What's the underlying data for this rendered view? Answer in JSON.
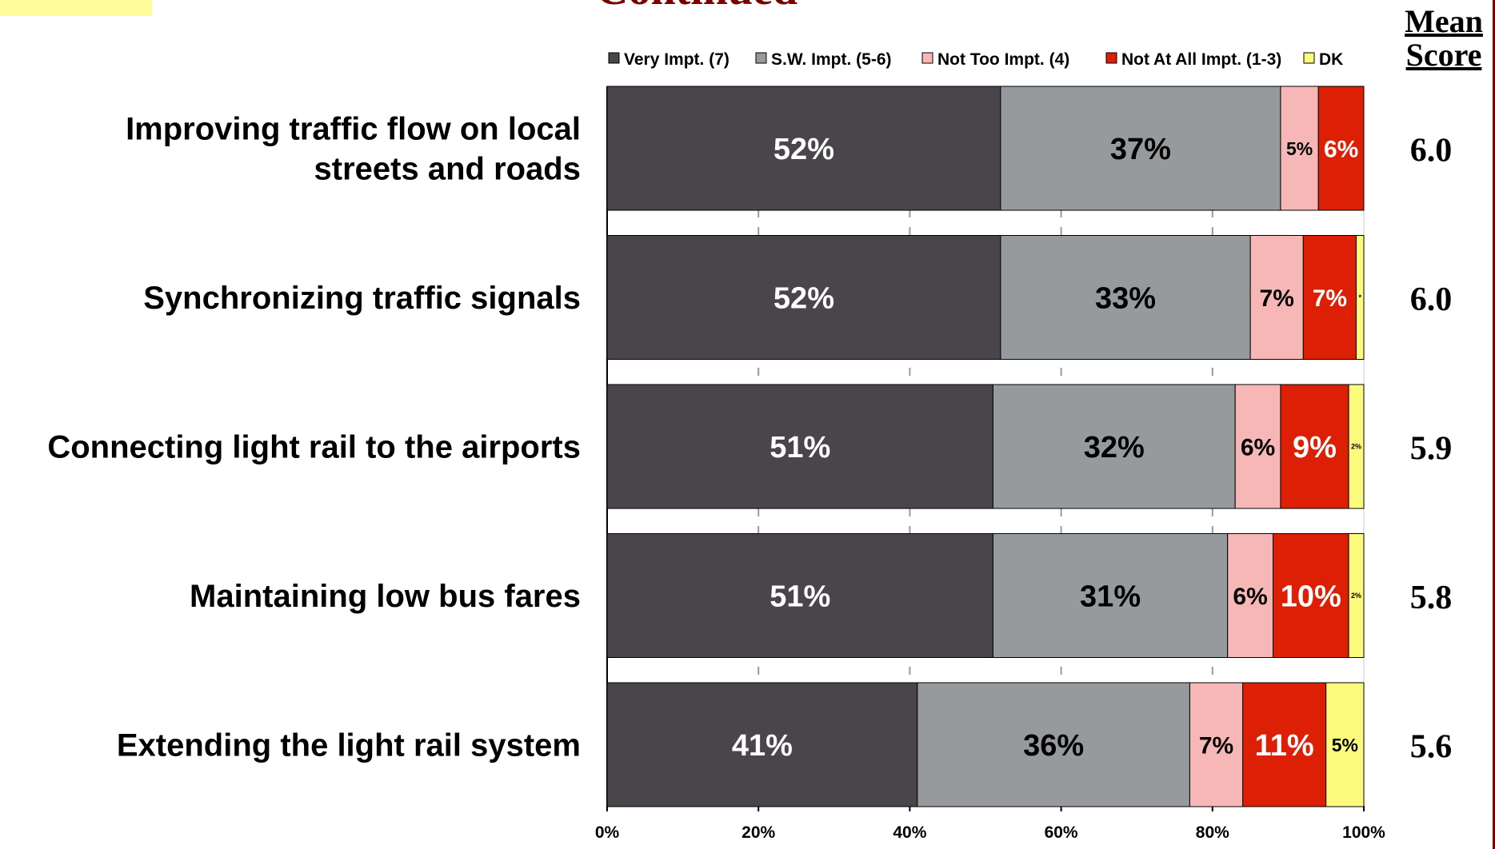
{
  "header": {
    "title_fragment": "Continued",
    "mean_score_line1": "Mean",
    "mean_score_line2": "Score"
  },
  "colors": {
    "very": "#4a454b",
    "sw": "#979a9c",
    "not_too": "#f7b7b7",
    "not_at_all": "#dc1f05",
    "dk": "#fdfb7d",
    "highlight": "#fdfb9a",
    "title": "#7a0000",
    "edge": "#7a0000"
  },
  "chart_data": {
    "type": "bar",
    "orientation": "horizontal",
    "stacked": true,
    "xlim": [
      0,
      100
    ],
    "tick_labels": [
      "0%",
      "20%",
      "40%",
      "60%",
      "80%",
      "100%"
    ],
    "grid": true,
    "legend_placement": "top",
    "categories": [
      "Improving traffic flow on local streets and roads",
      "Synchronizing traffic signals",
      "Connecting light rail to the airports",
      "Maintaining low bus fares",
      "Extending the light rail system"
    ],
    "category_lines": [
      [
        "Improving traffic flow on local",
        "streets and roads"
      ],
      [
        "Synchronizing traffic signals"
      ],
      [
        "Connecting light rail to the airports"
      ],
      [
        "Maintaining low bus fares"
      ],
      [
        "Extending the light rail system"
      ]
    ],
    "series": [
      {
        "name": "Very Impt. (7)",
        "color_key": "very",
        "label_color": "#ffffff",
        "values": [
          52,
          52,
          51,
          51,
          41
        ],
        "labels": [
          "52%",
          "52%",
          "51%",
          "51%",
          "41%"
        ],
        "label_sizes": [
          "large",
          "large",
          "large",
          "large",
          "large"
        ]
      },
      {
        "name": "S.W. Impt. (5-6)",
        "color_key": "sw",
        "label_color": "#000000",
        "values": [
          37,
          33,
          32,
          31,
          36
        ],
        "labels": [
          "37%",
          "33%",
          "32%",
          "31%",
          "36%"
        ],
        "label_sizes": [
          "large",
          "large",
          "large",
          "large",
          "large"
        ]
      },
      {
        "name": "Not Too Impt. (4)",
        "color_key": "not_too",
        "label_color": "#000000",
        "values": [
          5,
          7,
          6,
          6,
          7
        ],
        "labels": [
          "5%",
          "7%",
          "6%",
          "6%",
          "7%"
        ],
        "label_sizes": [
          "small",
          "medium",
          "medium",
          "medium",
          "medium"
        ]
      },
      {
        "name": "Not At All Impt. (1-3)",
        "color_key": "not_at_all",
        "label_color": "#ffffff",
        "values": [
          6,
          7,
          9,
          10,
          11
        ],
        "labels": [
          "6%",
          "7%",
          "9%",
          "10%",
          "11%"
        ],
        "label_sizes": [
          "medium",
          "medium",
          "large",
          "large",
          "large"
        ]
      },
      {
        "name": "DK",
        "color_key": "dk",
        "label_color": "#000000",
        "values": [
          0,
          1,
          2,
          2,
          5
        ],
        "labels": [
          "",
          "*",
          "2%",
          "2%",
          "5%"
        ],
        "label_sizes": [
          "tiny",
          "tiny",
          "tiny",
          "tiny",
          "small"
        ]
      }
    ],
    "mean_scores": [
      "6.0",
      "6.0",
      "5.9",
      "5.8",
      "5.6"
    ]
  }
}
